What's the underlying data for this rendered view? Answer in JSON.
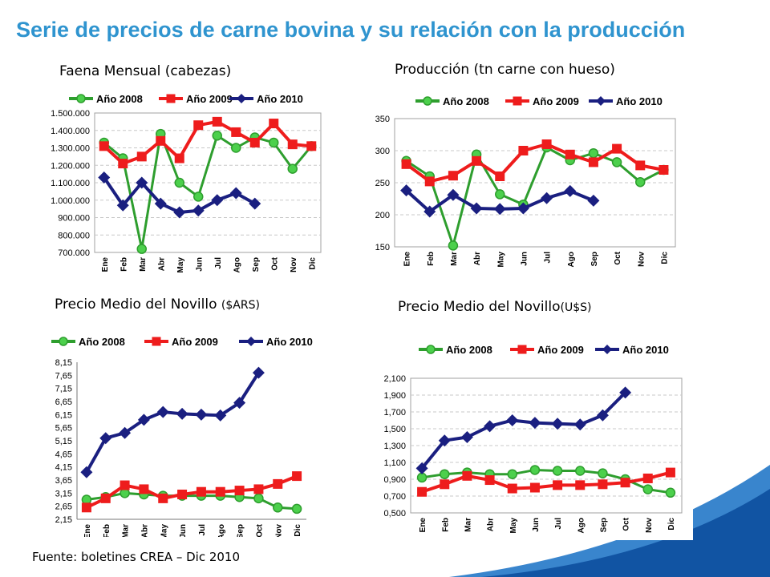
{
  "slide": {
    "title": "Serie de precios de carne bovina y su relación con la producción",
    "source": "Fuente: boletines CREA – Dic 2010"
  },
  "colors": {
    "title": "#2f94cf",
    "series_2008": "#2e9e2e",
    "series_2009": "#ee1c1c",
    "series_2010": "#1a1f80",
    "deco_blue": "#1670c4"
  },
  "chart_data": [
    {
      "id": "faena",
      "type": "line",
      "title_main": "Faena Mensual (cabezas)",
      "title_unit": "",
      "categories": [
        "Ene",
        "Feb",
        "Mar",
        "Abr",
        "May",
        "Jun",
        "Jul",
        "Ago",
        "Sep",
        "Oct",
        "Nov",
        "Dic"
      ],
      "ylim": [
        700000,
        1500000
      ],
      "yticks": [
        700000,
        800000,
        900000,
        1000000,
        1100000,
        1200000,
        1300000,
        1400000,
        1500000
      ],
      "ytick_labels": [
        "700.000",
        "800.000",
        "900.000",
        "1.000.000",
        "1.100.000",
        "1.200.000",
        "1.300.000",
        "1.400.000",
        "1.500.000"
      ],
      "grid": true,
      "legend": "top",
      "series": [
        {
          "name": "Año 2008",
          "values": [
            1330000,
            1240000,
            720000,
            1380000,
            1100000,
            1020000,
            1370000,
            1300000,
            1360000,
            1330000,
            1180000,
            1310000
          ]
        },
        {
          "name": "Año 2009",
          "values": [
            1310000,
            1210000,
            1250000,
            1340000,
            1240000,
            1430000,
            1450000,
            1390000,
            1330000,
            1440000,
            1320000,
            1310000
          ]
        },
        {
          "name": "Año 2010",
          "values": [
            1130000,
            970000,
            1100000,
            980000,
            930000,
            940000,
            1000000,
            1040000,
            980000,
            null,
            null,
            null
          ]
        }
      ]
    },
    {
      "id": "produccion",
      "type": "line",
      "title_main": "Producción (tn carne con hueso)",
      "title_unit": "",
      "categories": [
        "Ene",
        "Feb",
        "Mar",
        "Abr",
        "May",
        "Jun",
        "Jul",
        "Ago",
        "Sep",
        "Oct",
        "Nov",
        "Dic"
      ],
      "ylim": [
        150,
        350
      ],
      "yticks": [
        150,
        200,
        250,
        300,
        350
      ],
      "ytick_labels": [
        "150",
        "200",
        "250",
        "300",
        "350"
      ],
      "grid": true,
      "legend": "top",
      "series": [
        {
          "name": "Año 2008",
          "values": [
            284,
            260,
            152,
            294,
            232,
            216,
            305,
            285,
            296,
            282,
            251,
            270
          ]
        },
        {
          "name": "Año 2009",
          "values": [
            279,
            252,
            261,
            284,
            260,
            300,
            310,
            294,
            282,
            303,
            277,
            270
          ]
        },
        {
          "name": "Año 2010",
          "values": [
            238,
            205,
            231,
            210,
            209,
            210,
            226,
            237,
            222,
            null,
            null,
            null
          ]
        }
      ]
    },
    {
      "id": "precio_ars",
      "type": "line",
      "title_main": "Precio Medio del Novillo ",
      "title_unit": "($ARS)",
      "categories": [
        "Ene",
        "Feb",
        "Mar",
        "Abr",
        "May",
        "Jun",
        "Jul",
        "Ago",
        "Sep",
        "Oct",
        "Nov",
        "Dic"
      ],
      "ylim": [
        2.15,
        8.15
      ],
      "yticks": [
        2.15,
        2.65,
        3.15,
        3.65,
        4.15,
        4.65,
        5.15,
        5.65,
        6.15,
        6.65,
        7.15,
        7.65,
        8.15
      ],
      "ytick_labels": [
        "2,15",
        "2,65",
        "3,15",
        "3,65",
        "4,15",
        "4,65",
        "5,15",
        "5,65",
        "6,15",
        "6,65",
        "7,15",
        "7,65",
        "8,15"
      ],
      "grid": false,
      "legend": "top",
      "series": [
        {
          "name": "Año 2008",
          "values": [
            2.9,
            3.0,
            3.15,
            3.1,
            3.05,
            3.05,
            3.05,
            3.05,
            3.0,
            2.95,
            2.6,
            2.55
          ]
        },
        {
          "name": "Año 2009",
          "values": [
            2.6,
            2.95,
            3.45,
            3.3,
            2.95,
            3.1,
            3.2,
            3.2,
            3.25,
            3.3,
            3.5,
            3.8
          ]
        },
        {
          "name": "Año 2010",
          "values": [
            3.95,
            5.25,
            5.45,
            5.95,
            6.25,
            6.18,
            6.15,
            6.12,
            6.6,
            7.75,
            null,
            null
          ]
        }
      ]
    },
    {
      "id": "precio_usd",
      "type": "line",
      "title_main": "Precio Medio del Novillo",
      "title_unit": "(U$S)",
      "categories": [
        "Ene",
        "Feb",
        "Mar",
        "Abr",
        "May",
        "Jun",
        "Jul",
        "Ago",
        "Sep",
        "Oct",
        "Nov",
        "Dic"
      ],
      "ylim": [
        0.5,
        2.1
      ],
      "yticks": [
        0.5,
        0.7,
        0.9,
        1.1,
        1.3,
        1.5,
        1.7,
        1.9,
        2.1
      ],
      "ytick_labels": [
        "0,500",
        "0,700",
        "0,900",
        "1,100",
        "1,300",
        "1,500",
        "1,700",
        "1,900",
        "2,100"
      ],
      "grid": true,
      "legend": "top",
      "series": [
        {
          "name": "Año 2008",
          "values": [
            0.92,
            0.96,
            0.98,
            0.96,
            0.96,
            1.01,
            1.0,
            1.0,
            0.97,
            0.9,
            0.78,
            0.74
          ]
        },
        {
          "name": "Año 2009",
          "values": [
            0.75,
            0.84,
            0.94,
            0.89,
            0.79,
            0.8,
            0.83,
            0.83,
            0.84,
            0.86,
            0.91,
            0.98
          ]
        },
        {
          "name": "Año 2010",
          "values": [
            1.03,
            1.36,
            1.4,
            1.53,
            1.6,
            1.57,
            1.56,
            1.55,
            1.66,
            1.93,
            null,
            null
          ]
        }
      ]
    }
  ]
}
